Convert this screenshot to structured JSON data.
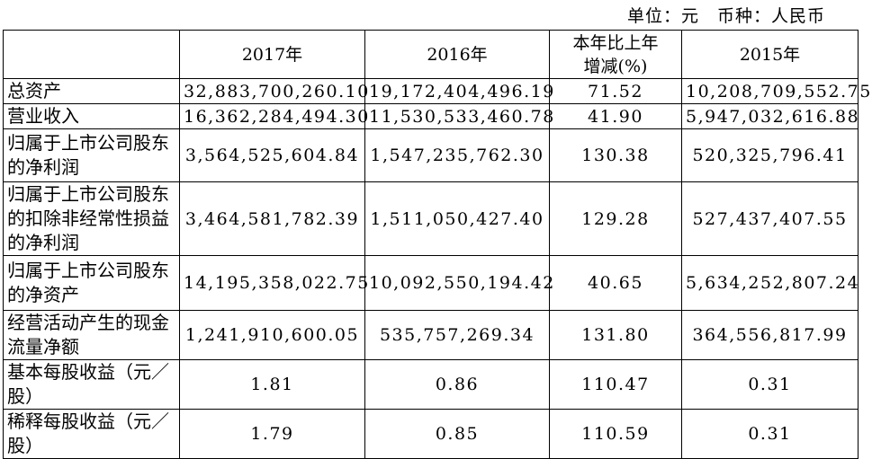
{
  "header": {
    "unit": "单位：元　币种：人民币"
  },
  "table": {
    "columns": [
      "",
      "2017年",
      "2016年",
      "本年比上年\n增减(%)",
      "2015年"
    ],
    "rows": [
      [
        "总资产",
        "32,883,700,260.10",
        "19,172,404,496.19",
        "71.52",
        "10,208,709,552.75"
      ],
      [
        "营业收入",
        "16,362,284,494.30",
        "11,530,533,460.78",
        "41.90",
        "5,947,032,616.88"
      ],
      [
        "归属于上市公司股东的净利润",
        "3,564,525,604.84",
        "1,547,235,762.30",
        "130.38",
        "520,325,796.41"
      ],
      [
        "归属于上市公司股东的扣除非经常性损益的净利润",
        "3,464,581,782.39",
        "1,511,050,427.40",
        "129.28",
        "527,437,407.55"
      ],
      [
        "归属于上市公司股东的净资产",
        "14,195,358,022.75",
        "10,092,550,194.42",
        "40.65",
        "5,634,252,807.24"
      ],
      [
        "经营活动产生的现金流量净额",
        "1,241,910,600.05",
        "535,757,269.34",
        "131.80",
        "364,556,817.99"
      ],
      [
        "基本每股收益（元／股）",
        "1.81",
        "0.86",
        "110.47",
        "0.31"
      ],
      [
        "稀释每股收益（元／股）",
        "1.79",
        "0.85",
        "110.59",
        "0.31"
      ]
    ]
  }
}
